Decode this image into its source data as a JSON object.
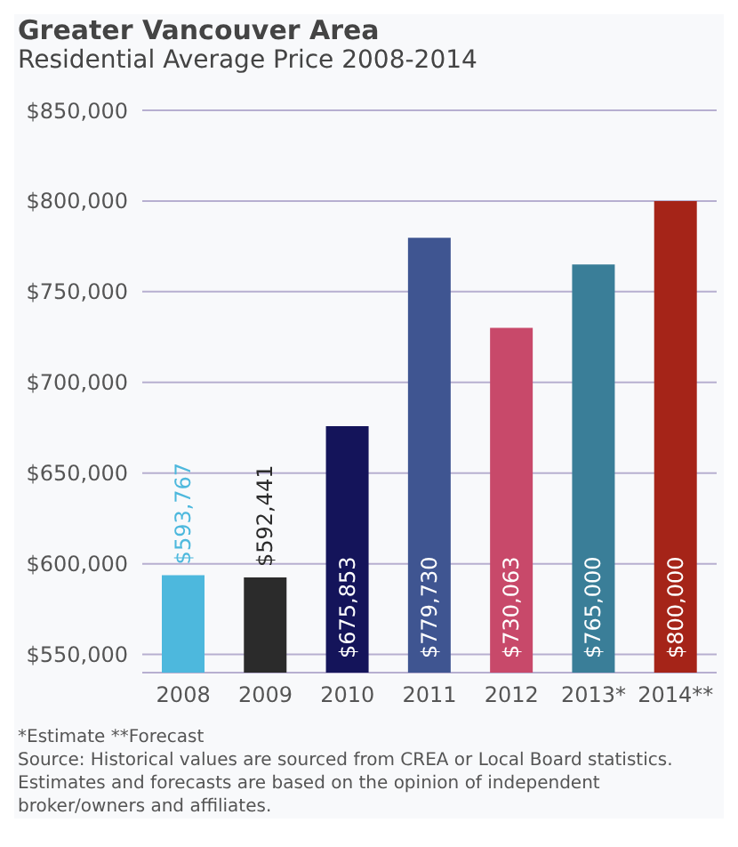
{
  "chart_data": {
    "type": "bar",
    "title": "Greater Vancouver Area",
    "subtitle": "Residential Average Price 2008-2014",
    "categories": [
      "2008",
      "2009",
      "2010",
      "2011",
      "2012",
      "2013*",
      "2014**"
    ],
    "values": [
      593767,
      592441,
      675853,
      779730,
      730063,
      765000,
      800000
    ],
    "colors": [
      "#4db8dd",
      "#2b2b2b",
      "#14145a",
      "#3f5591",
      "#c8496a",
      "#3a7e98",
      "#a52418"
    ],
    "value_labels": [
      "$593,767",
      "$592,441",
      "$675,853",
      "$779,730",
      "$730,063",
      "$765,000",
      "$800,000"
    ],
    "ylim": [
      540000,
      850000
    ],
    "yticks": [
      {
        "value": 550000,
        "label": "$550,000"
      },
      {
        "value": 600000,
        "label": "$600,000"
      },
      {
        "value": 650000,
        "label": "$650,000"
      },
      {
        "value": 700000,
        "label": "$700,000"
      },
      {
        "value": 750000,
        "label": "$750,000"
      },
      {
        "value": 800000,
        "label": "$800,000"
      },
      {
        "value": 850000,
        "label": "$850,000"
      }
    ],
    "grid": "y",
    "legend": false,
    "annotations": [
      "*Estimate **Forecast",
      "Source: Historical values are sourced from CREA or Local Board statistics.",
      "Estimates and forecasts are based on the opinion of independent",
      "broker/owners and affiliates."
    ]
  }
}
